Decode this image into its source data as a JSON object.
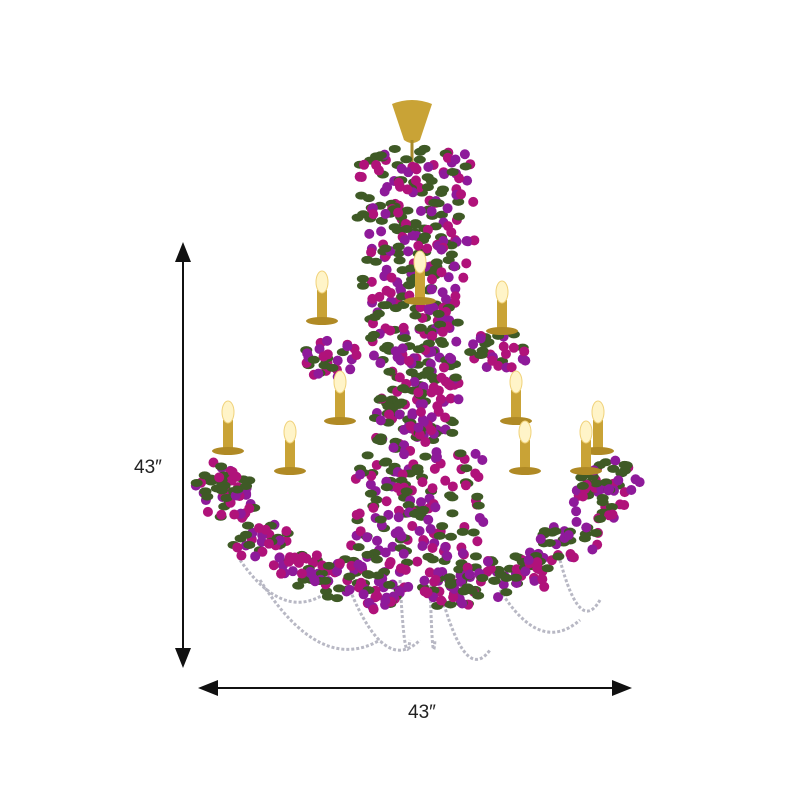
{
  "dimensions": {
    "height_label": "43″",
    "width_label": "43″"
  },
  "colors": {
    "flower": "#b0127a",
    "leaf": "#3f5a26",
    "gold": "#c9a336",
    "crystal": "#b8b8c4"
  }
}
